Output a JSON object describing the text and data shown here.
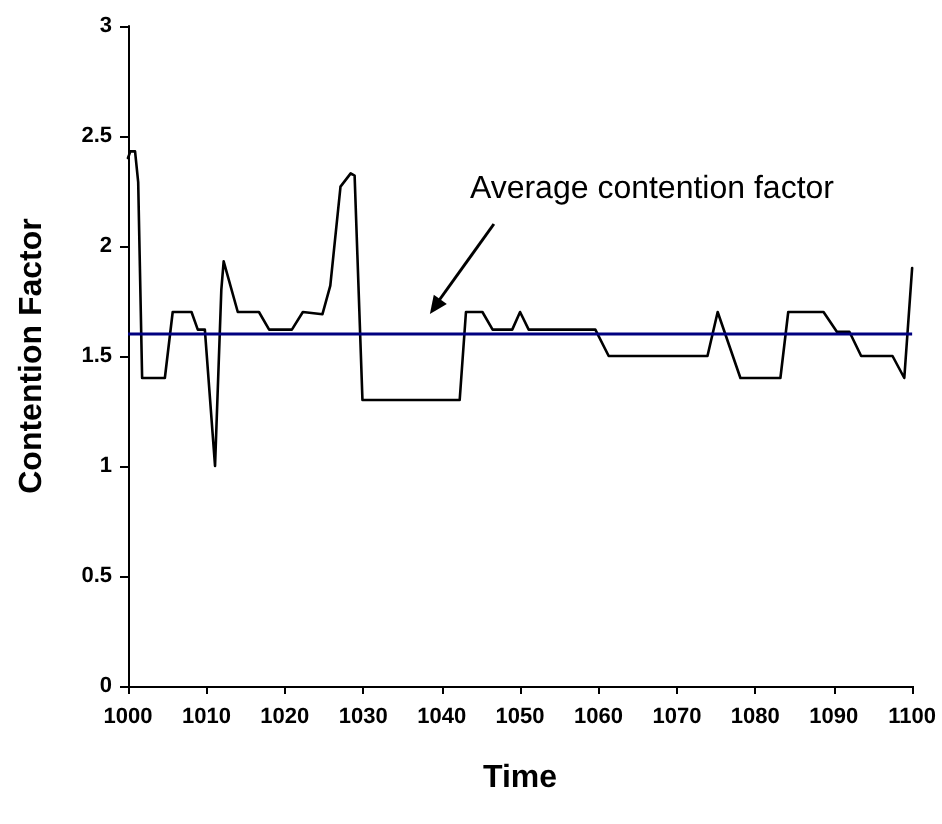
{
  "chart_data": {
    "type": "line",
    "xlabel": "Time",
    "ylabel": "Contention Factor",
    "x": [
      1000,
      1000.3,
      1000.9,
      1001.3,
      1001.8,
      1004.7,
      1005.7,
      1008.1,
      1008.9,
      1009.8,
      1011.1,
      1011.9,
      1012.2,
      1014,
      1016.7,
      1018,
      1020.9,
      1022.3,
      1024.8,
      1025.8,
      1027.1,
      1028.4,
      1028.9,
      1029.9,
      1041.6,
      1042.3,
      1043.1,
      1045.2,
      1046.5,
      1049,
      1050,
      1051.1,
      1059.6,
      1061.3,
      1073.9,
      1075.2,
      1078.1,
      1083.2,
      1084.2,
      1088.7,
      1090.4,
      1092,
      1093.5,
      1097.5,
      1099,
      1100
    ],
    "values": [
      2.4,
      2.43,
      2.43,
      2.29,
      1.4,
      1.4,
      1.7,
      1.7,
      1.62,
      1.62,
      1.0,
      1.8,
      1.93,
      1.7,
      1.7,
      1.62,
      1.62,
      1.7,
      1.69,
      1.82,
      2.27,
      2.33,
      2.32,
      1.3,
      1.3,
      1.3,
      1.7,
      1.7,
      1.62,
      1.62,
      1.7,
      1.62,
      1.62,
      1.5,
      1.5,
      1.7,
      1.4,
      1.4,
      1.7,
      1.7,
      1.61,
      1.61,
      1.5,
      1.5,
      1.4,
      1.9
    ],
    "color": "#000000",
    "marker": "none",
    "line_style": "solid",
    "grid": false,
    "xlim": [
      1000,
      1100
    ],
    "xticks": [
      1000,
      1010,
      1020,
      1030,
      1040,
      1050,
      1060,
      1070,
      1080,
      1090,
      1100
    ],
    "ylim": [
      0,
      3
    ],
    "yticks": [
      0,
      0.5,
      1,
      1.5,
      2,
      2.5,
      3
    ],
    "ref_lines": [
      {
        "axis": "y",
        "value": 1.6,
        "color": "#000080"
      }
    ],
    "annotations": [
      "Average contention factor"
    ]
  }
}
